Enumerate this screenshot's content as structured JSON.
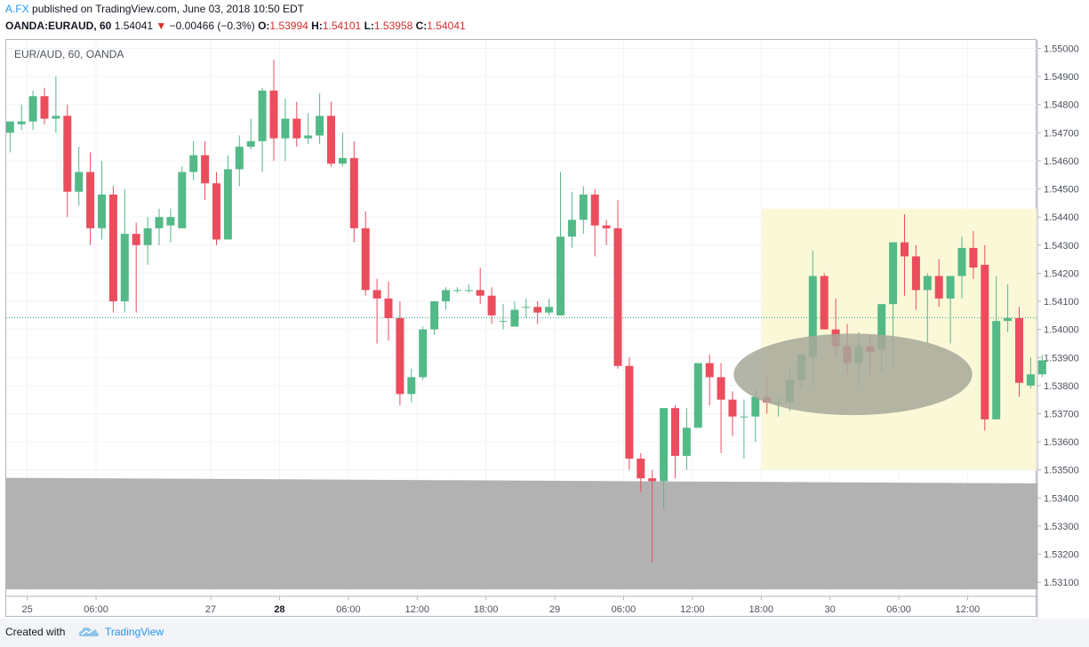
{
  "header": {
    "author": "A.FX",
    "published_text": "published on TradingView.com, June 03, 2018 10:50 EDT",
    "symbol": "OANDA:EURAUD, 60",
    "last": "1.54041",
    "change": "−0.00466 (−0.3%)",
    "o_label": "O:",
    "o_value": "1.53994",
    "h_label": "H:",
    "h_value": "1.54101",
    "l_label": "L:",
    "l_value": "1.53958",
    "c_label": "C:",
    "c_value": "1.54041"
  },
  "footer": {
    "created_with": "Created with",
    "brand": "TradingView"
  },
  "colors": {
    "up": "#53b987",
    "down": "#eb4d5c",
    "grid": "#f0f3fa",
    "last_price_line": "#26a69a",
    "highlight_rect": "#fbf8d8",
    "ellipse": "#a7a89a",
    "support_zone": "#b2b2b2"
  },
  "chart_data": {
    "type": "candlestick",
    "title": "EUR/AUD, 60, OANDA",
    "ylim": [
      1.5305,
      1.5503
    ],
    "y_ticks": [
      "1.55000",
      "1.54900",
      "1.54800",
      "1.54700",
      "1.54600",
      "1.54500",
      "1.54400",
      "1.54300",
      "1.54200",
      "1.54100",
      "1.54000",
      "1.53900",
      "1.53800",
      "1.53700",
      "1.53600",
      "1.53500",
      "1.53400",
      "1.53300",
      "1.53200",
      "1.53100"
    ],
    "x_ticks": [
      {
        "label": "25",
        "bar": 1.5,
        "bold": false
      },
      {
        "label": "06:00",
        "bar": 7.5,
        "bold": false
      },
      {
        "label": "27",
        "bar": 17.5,
        "bold": false
      },
      {
        "label": "28",
        "bar": 23.5,
        "bold": true
      },
      {
        "label": "06:00",
        "bar": 29.5,
        "bold": false
      },
      {
        "label": "12:00",
        "bar": 35.5,
        "bold": false
      },
      {
        "label": "18:00",
        "bar": 41.5,
        "bold": false
      },
      {
        "label": "29",
        "bar": 47.5,
        "bold": false
      },
      {
        "label": "06:00",
        "bar": 53.5,
        "bold": false
      },
      {
        "label": "12:00",
        "bar": 59.5,
        "bold": false
      },
      {
        "label": "18:00",
        "bar": 65.5,
        "bold": false
      },
      {
        "label": "30",
        "bar": 71.5,
        "bold": false
      },
      {
        "label": "06:00",
        "bar": 77.5,
        "bold": false
      },
      {
        "label": "12:00",
        "bar": 83.5,
        "bold": false
      }
    ],
    "last_price": 1.54041,
    "candles": [
      [
        1.547,
        1.5474,
        1.5463,
        1.5474
      ],
      [
        1.5473,
        1.548,
        1.5471,
        1.5474
      ],
      [
        1.5474,
        1.5485,
        1.5471,
        1.5483
      ],
      [
        1.5483,
        1.5486,
        1.5473,
        1.5475
      ],
      [
        1.5475,
        1.549,
        1.547,
        1.5476
      ],
      [
        1.5476,
        1.548,
        1.544,
        1.5449
      ],
      [
        1.5449,
        1.5465,
        1.5444,
        1.5456
      ],
      [
        1.5456,
        1.5463,
        1.543,
        1.5436
      ],
      [
        1.5436,
        1.546,
        1.5432,
        1.5448
      ],
      [
        1.5448,
        1.5451,
        1.5406,
        1.541
      ],
      [
        1.541,
        1.545,
        1.5406,
        1.5434
      ],
      [
        1.5434,
        1.5438,
        1.5406,
        1.543
      ],
      [
        1.543,
        1.544,
        1.5423,
        1.5436
      ],
      [
        1.5436,
        1.5443,
        1.543,
        1.544
      ],
      [
        1.5437,
        1.5443,
        1.5431,
        1.544
      ],
      [
        1.5436,
        1.5458,
        1.5436,
        1.5456
      ],
      [
        1.5456,
        1.5467,
        1.5453,
        1.5462
      ],
      [
        1.5462,
        1.5467,
        1.5446,
        1.5452
      ],
      [
        1.5452,
        1.5456,
        1.543,
        1.5432
      ],
      [
        1.5432,
        1.5462,
        1.5432,
        1.5457
      ],
      [
        1.5457,
        1.5469,
        1.5451,
        1.5465
      ],
      [
        1.5465,
        1.5475,
        1.5464,
        1.5467
      ],
      [
        1.5467,
        1.5486,
        1.5456,
        1.5485
      ],
      [
        1.5485,
        1.5496,
        1.546,
        1.5468
      ],
      [
        1.5468,
        1.5482,
        1.546,
        1.5475
      ],
      [
        1.5475,
        1.5481,
        1.5465,
        1.5468
      ],
      [
        1.5468,
        1.5477,
        1.5466,
        1.5469
      ],
      [
        1.5469,
        1.5484,
        1.5466,
        1.5476
      ],
      [
        1.5476,
        1.5481,
        1.5458,
        1.5459
      ],
      [
        1.5459,
        1.547,
        1.5458,
        1.5461
      ],
      [
        1.5461,
        1.5467,
        1.5431,
        1.5436
      ],
      [
        1.5436,
        1.5442,
        1.5412,
        1.5414
      ],
      [
        1.5414,
        1.5418,
        1.5395,
        1.5411
      ],
      [
        1.5411,
        1.5417,
        1.5396,
        1.5404
      ],
      [
        1.5404,
        1.541,
        1.5373,
        1.5377
      ],
      [
        1.5377,
        1.5386,
        1.5374,
        1.5383
      ],
      [
        1.5383,
        1.5401,
        1.5382,
        1.54
      ],
      [
        1.54,
        1.541,
        1.5398,
        1.541
      ],
      [
        1.541,
        1.5415,
        1.5407,
        1.5414
      ],
      [
        1.5414,
        1.5415,
        1.5413,
        1.5414
      ],
      [
        1.5414,
        1.5416,
        1.5413,
        1.5414
      ],
      [
        1.5414,
        1.5422,
        1.5409,
        1.5412
      ],
      [
        1.5412,
        1.5415,
        1.5402,
        1.5405
      ],
      [
        1.5403,
        1.5409,
        1.54,
        1.5403
      ],
      [
        1.5401,
        1.541,
        1.5401,
        1.5407
      ],
      [
        1.5408,
        1.5411,
        1.5404,
        1.5408
      ],
      [
        1.5408,
        1.541,
        1.5402,
        1.5406
      ],
      [
        1.5406,
        1.5411,
        1.5405,
        1.5408
      ],
      [
        1.5405,
        1.5456,
        1.5405,
        1.5433
      ],
      [
        1.5433,
        1.5449,
        1.5429,
        1.5439
      ],
      [
        1.5439,
        1.5451,
        1.5434,
        1.5448
      ],
      [
        1.5448,
        1.545,
        1.5426,
        1.5437
      ],
      [
        1.5437,
        1.5439,
        1.543,
        1.5436
      ],
      [
        1.5436,
        1.5446,
        1.5386,
        1.5387
      ],
      [
        1.5387,
        1.539,
        1.535,
        1.5354
      ],
      [
        1.5354,
        1.5356,
        1.5342,
        1.5347
      ],
      [
        1.5347,
        1.535,
        1.5317,
        1.5346
      ],
      [
        1.5346,
        1.5372,
        1.5336,
        1.5372
      ],
      [
        1.5372,
        1.5373,
        1.5347,
        1.5355
      ],
      [
        1.5355,
        1.5372,
        1.535,
        1.5365
      ],
      [
        1.5365,
        1.5387,
        1.5365,
        1.5388
      ],
      [
        1.5388,
        1.5391,
        1.5373,
        1.5383
      ],
      [
        1.5383,
        1.5388,
        1.5356,
        1.5375
      ],
      [
        1.5375,
        1.5378,
        1.5362,
        1.5369
      ],
      [
        1.5369,
        1.5375,
        1.5354,
        1.5369
      ],
      [
        1.5369,
        1.5379,
        1.536,
        1.5376
      ],
      [
        1.5376,
        1.5383,
        1.537,
        1.5374
      ],
      [
        1.5374,
        1.5376,
        1.5369,
        1.5374
      ],
      [
        1.5374,
        1.5386,
        1.5371,
        1.5382
      ],
      [
        1.5382,
        1.5391,
        1.5379,
        1.5391
      ],
      [
        1.539,
        1.5428,
        1.538,
        1.5419
      ],
      [
        1.5419,
        1.542,
        1.54,
        1.54
      ],
      [
        1.54,
        1.5411,
        1.539,
        1.5394
      ],
      [
        1.5394,
        1.5402,
        1.5384,
        1.5388
      ],
      [
        1.5388,
        1.5399,
        1.538,
        1.5394
      ],
      [
        1.5394,
        1.5398,
        1.5384,
        1.5392
      ],
      [
        1.5393,
        1.5409,
        1.5385,
        1.5409
      ],
      [
        1.5409,
        1.5431,
        1.5387,
        1.5431
      ],
      [
        1.5431,
        1.5441,
        1.5412,
        1.5426
      ],
      [
        1.5426,
        1.543,
        1.5407,
        1.5414
      ],
      [
        1.5414,
        1.542,
        1.5395,
        1.5419
      ],
      [
        1.5419,
        1.5425,
        1.5408,
        1.5411
      ],
      [
        1.5411,
        1.5419,
        1.5395,
        1.5419
      ],
      [
        1.5419,
        1.5433,
        1.5411,
        1.5429
      ],
      [
        1.5429,
        1.5435,
        1.5418,
        1.5422
      ],
      [
        1.5423,
        1.543,
        1.5364,
        1.5368
      ],
      [
        1.5368,
        1.5419,
        1.5368,
        1.5403
      ],
      [
        1.5403,
        1.5416,
        1.5399,
        1.5404
      ],
      [
        1.5404,
        1.5408,
        1.5376,
        1.5381
      ],
      [
        1.538,
        1.539,
        1.5379,
        1.5384
      ],
      [
        1.5384,
        1.5391,
        1.5383,
        1.5389
      ]
    ],
    "annotations": {
      "highlight_rect": {
        "bar_start": 65.5,
        "bar_end": 89.5,
        "price_top": 1.5443,
        "price_bottom": 1.535
      },
      "ellipse": {
        "bar_center": 73.5,
        "price_center": 1.5384,
        "bar_radius": 10.4,
        "price_radius": 0.00145
      },
      "support_zone": {
        "price_top_left": 1.53472,
        "price_top_right": 1.53452,
        "price_bottom": 1.53075
      }
    }
  }
}
